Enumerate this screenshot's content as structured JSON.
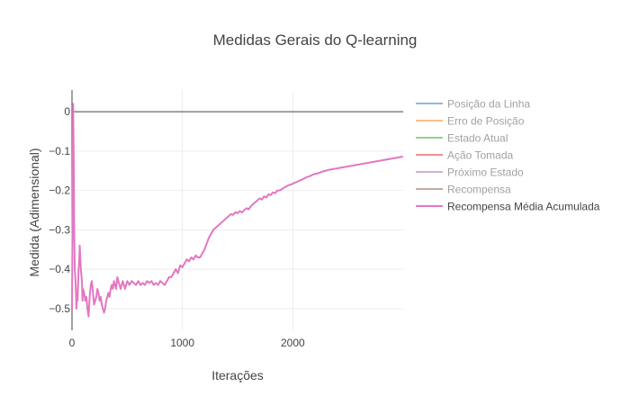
{
  "chart_data": {
    "type": "line",
    "title": "Medidas Gerais do Q-learning",
    "xlabel": "Iterações",
    "ylabel": "Medida (Adimensional)",
    "xlim": [
      0,
      3000
    ],
    "ylim": [
      -0.555,
      0.055
    ],
    "x_ticks": [
      {
        "value": 0,
        "label": "0"
      },
      {
        "value": 1000,
        "label": "1000"
      },
      {
        "value": 2000,
        "label": "2000"
      }
    ],
    "y_ticks": [
      {
        "value": 0,
        "label": "0"
      },
      {
        "value": -0.1,
        "label": "−0.1"
      },
      {
        "value": -0.2,
        "label": "−0.2"
      },
      {
        "value": -0.3,
        "label": "−0.3"
      },
      {
        "value": -0.4,
        "label": "−0.4"
      },
      {
        "value": -0.5,
        "label": "−0.5"
      }
    ],
    "grid": true,
    "zero_line": true,
    "legend_position": "right",
    "series": [
      {
        "name": "Posição da Linha",
        "color": "#1f77b4",
        "visible": false,
        "values": []
      },
      {
        "name": "Erro de Posição",
        "color": "#ff7f0e",
        "visible": false,
        "values": []
      },
      {
        "name": "Estado Atual",
        "color": "#2ca02c",
        "visible": false,
        "values": []
      },
      {
        "name": "Ação Tomada",
        "color": "#d62728",
        "visible": false,
        "values": []
      },
      {
        "name": "Próximo Estado",
        "color": "#9467bd",
        "visible": false,
        "values": []
      },
      {
        "name": "Recompensa",
        "color": "#8c564b",
        "visible": false,
        "values": []
      },
      {
        "name": "Recompensa Média Acumulada",
        "color": "#e377c2",
        "visible": true,
        "values": [
          [
            0,
            -0.5
          ],
          [
            5,
            -0.28
          ],
          [
            10,
            0.02
          ],
          [
            15,
            -0.1
          ],
          [
            20,
            -0.3
          ],
          [
            25,
            -0.4
          ],
          [
            30,
            -0.42
          ],
          [
            35,
            -0.45
          ],
          [
            40,
            -0.5
          ],
          [
            45,
            -0.46
          ],
          [
            50,
            -0.48
          ],
          [
            55,
            -0.44
          ],
          [
            60,
            -0.4
          ],
          [
            65,
            -0.38
          ],
          [
            70,
            -0.34
          ],
          [
            75,
            -0.37
          ],
          [
            80,
            -0.4
          ],
          [
            90,
            -0.43
          ],
          [
            95,
            -0.48
          ],
          [
            100,
            -0.45
          ],
          [
            110,
            -0.46
          ],
          [
            120,
            -0.48
          ],
          [
            130,
            -0.47
          ],
          [
            140,
            -0.5
          ],
          [
            150,
            -0.52
          ],
          [
            160,
            -0.47
          ],
          [
            170,
            -0.44
          ],
          [
            180,
            -0.43
          ],
          [
            190,
            -0.46
          ],
          [
            200,
            -0.49
          ],
          [
            210,
            -0.48
          ],
          [
            220,
            -0.47
          ],
          [
            230,
            -0.45
          ],
          [
            240,
            -0.46
          ],
          [
            250,
            -0.48
          ],
          [
            260,
            -0.47
          ],
          [
            270,
            -0.49
          ],
          [
            280,
            -0.5
          ],
          [
            290,
            -0.51
          ],
          [
            300,
            -0.5
          ],
          [
            310,
            -0.48
          ],
          [
            320,
            -0.47
          ],
          [
            330,
            -0.46
          ],
          [
            340,
            -0.47
          ],
          [
            350,
            -0.45
          ],
          [
            360,
            -0.44
          ],
          [
            370,
            -0.45
          ],
          [
            380,
            -0.43
          ],
          [
            390,
            -0.44
          ],
          [
            400,
            -0.45
          ],
          [
            410,
            -0.42
          ],
          [
            420,
            -0.43
          ],
          [
            430,
            -0.44
          ],
          [
            440,
            -0.45
          ],
          [
            450,
            -0.44
          ],
          [
            460,
            -0.43
          ],
          [
            470,
            -0.44
          ],
          [
            480,
            -0.45
          ],
          [
            490,
            -0.44
          ],
          [
            500,
            -0.43
          ],
          [
            520,
            -0.44
          ],
          [
            540,
            -0.43
          ],
          [
            560,
            -0.435
          ],
          [
            580,
            -0.44
          ],
          [
            600,
            -0.43
          ],
          [
            620,
            -0.44
          ],
          [
            640,
            -0.435
          ],
          [
            660,
            -0.44
          ],
          [
            680,
            -0.43
          ],
          [
            700,
            -0.435
          ],
          [
            720,
            -0.43
          ],
          [
            740,
            -0.44
          ],
          [
            760,
            -0.435
          ],
          [
            780,
            -0.44
          ],
          [
            800,
            -0.43
          ],
          [
            820,
            -0.435
          ],
          [
            840,
            -0.44
          ],
          [
            860,
            -0.43
          ],
          [
            880,
            -0.42
          ],
          [
            900,
            -0.42
          ],
          [
            920,
            -0.41
          ],
          [
            940,
            -0.4
          ],
          [
            960,
            -0.41
          ],
          [
            980,
            -0.39
          ],
          [
            1000,
            -0.395
          ],
          [
            1020,
            -0.385
          ],
          [
            1040,
            -0.375
          ],
          [
            1060,
            -0.38
          ],
          [
            1080,
            -0.37
          ],
          [
            1100,
            -0.375
          ],
          [
            1120,
            -0.365
          ],
          [
            1140,
            -0.37
          ],
          [
            1160,
            -0.37
          ],
          [
            1180,
            -0.36
          ],
          [
            1200,
            -0.35
          ],
          [
            1220,
            -0.335
          ],
          [
            1240,
            -0.32
          ],
          [
            1260,
            -0.31
          ],
          [
            1280,
            -0.3
          ],
          [
            1300,
            -0.295
          ],
          [
            1320,
            -0.29
          ],
          [
            1340,
            -0.285
          ],
          [
            1360,
            -0.28
          ],
          [
            1380,
            -0.275
          ],
          [
            1400,
            -0.27
          ],
          [
            1420,
            -0.265
          ],
          [
            1440,
            -0.26
          ],
          [
            1460,
            -0.262
          ],
          [
            1480,
            -0.255
          ],
          [
            1500,
            -0.258
          ],
          [
            1520,
            -0.252
          ],
          [
            1540,
            -0.256
          ],
          [
            1560,
            -0.25
          ],
          [
            1580,
            -0.245
          ],
          [
            1600,
            -0.248
          ],
          [
            1620,
            -0.24
          ],
          [
            1640,
            -0.235
          ],
          [
            1660,
            -0.23
          ],
          [
            1680,
            -0.225
          ],
          [
            1700,
            -0.22
          ],
          [
            1720,
            -0.223
          ],
          [
            1740,
            -0.215
          ],
          [
            1760,
            -0.218
          ],
          [
            1780,
            -0.21
          ],
          [
            1800,
            -0.212
          ],
          [
            1820,
            -0.205
          ],
          [
            1840,
            -0.207
          ],
          [
            1860,
            -0.2
          ],
          [
            1880,
            -0.2
          ],
          [
            1900,
            -0.197
          ],
          [
            1920,
            -0.193
          ],
          [
            1940,
            -0.19
          ],
          [
            1960,
            -0.187
          ],
          [
            1980,
            -0.185
          ],
          [
            2000,
            -0.183
          ],
          [
            2020,
            -0.18
          ],
          [
            2040,
            -0.178
          ],
          [
            2060,
            -0.175
          ],
          [
            2080,
            -0.173
          ],
          [
            2100,
            -0.17
          ],
          [
            2120,
            -0.167
          ],
          [
            2140,
            -0.165
          ],
          [
            2160,
            -0.163
          ],
          [
            2180,
            -0.16
          ],
          [
            2200,
            -0.158
          ],
          [
            2220,
            -0.157
          ],
          [
            2240,
            -0.155
          ],
          [
            2260,
            -0.153
          ],
          [
            2280,
            -0.151
          ],
          [
            2300,
            -0.15
          ],
          [
            2320,
            -0.148
          ],
          [
            2340,
            -0.147
          ],
          [
            2360,
            -0.146
          ],
          [
            2380,
            -0.145
          ],
          [
            2400,
            -0.144
          ],
          [
            2420,
            -0.143
          ],
          [
            2440,
            -0.142
          ],
          [
            2460,
            -0.141
          ],
          [
            2480,
            -0.14
          ],
          [
            2500,
            -0.139
          ],
          [
            2520,
            -0.138
          ],
          [
            2540,
            -0.137
          ],
          [
            2560,
            -0.136
          ],
          [
            2580,
            -0.135
          ],
          [
            2600,
            -0.134
          ],
          [
            2620,
            -0.133
          ],
          [
            2640,
            -0.132
          ],
          [
            2660,
            -0.131
          ],
          [
            2680,
            -0.13
          ],
          [
            2700,
            -0.129
          ],
          [
            2720,
            -0.128
          ],
          [
            2740,
            -0.127
          ],
          [
            2760,
            -0.126
          ],
          [
            2780,
            -0.125
          ],
          [
            2800,
            -0.124
          ],
          [
            2820,
            -0.123
          ],
          [
            2840,
            -0.122
          ],
          [
            2860,
            -0.121
          ],
          [
            2880,
            -0.12
          ],
          [
            2900,
            -0.119
          ],
          [
            2920,
            -0.118
          ],
          [
            2940,
            -0.117
          ],
          [
            2960,
            -0.116
          ],
          [
            2980,
            -0.115
          ],
          [
            2999,
            -0.114
          ]
        ]
      }
    ]
  }
}
